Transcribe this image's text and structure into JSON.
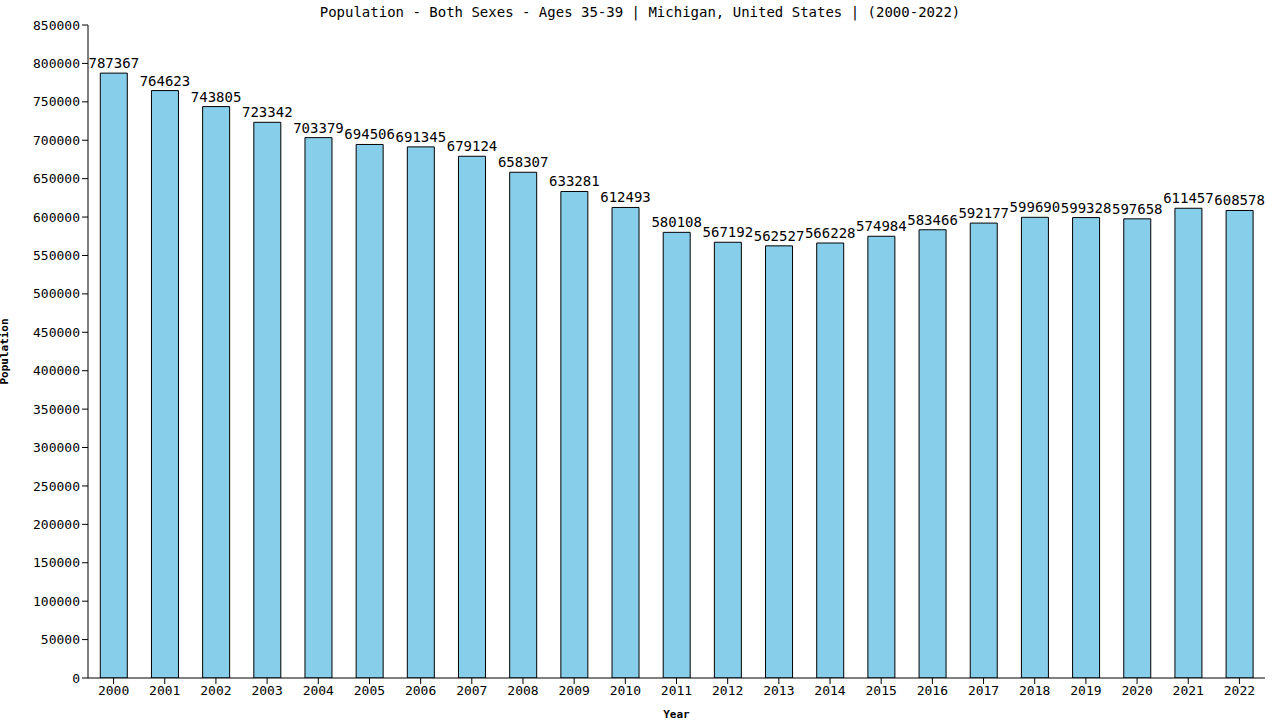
{
  "chart_data": {
    "type": "bar",
    "title": "Population - Both Sexes - Ages 35-39 | Michigan, United States |  (2000-2022)",
    "x_label": "Year",
    "y_label": "Population",
    "categories": [
      "2000",
      "2001",
      "2002",
      "2003",
      "2004",
      "2005",
      "2006",
      "2007",
      "2008",
      "2009",
      "2010",
      "2011",
      "2012",
      "2013",
      "2014",
      "2015",
      "2016",
      "2017",
      "2018",
      "2019",
      "2020",
      "2021",
      "2022"
    ],
    "values": [
      787367,
      764623,
      743805,
      723342,
      703379,
      694506,
      691345,
      679124,
      658307,
      633281,
      612493,
      580108,
      567192,
      562527,
      566228,
      574984,
      583466,
      592177,
      599690,
      599328,
      597658,
      611457,
      608578
    ],
    "color": "#87ceeb",
    "ylim": [
      0,
      850000
    ],
    "yticks": [
      0,
      50000,
      100000,
      150000,
      200000,
      250000,
      300000,
      350000,
      400000,
      450000,
      500000,
      550000,
      600000,
      650000,
      700000,
      750000,
      800000,
      850000
    ],
    "grid": false,
    "data_labels": true
  }
}
